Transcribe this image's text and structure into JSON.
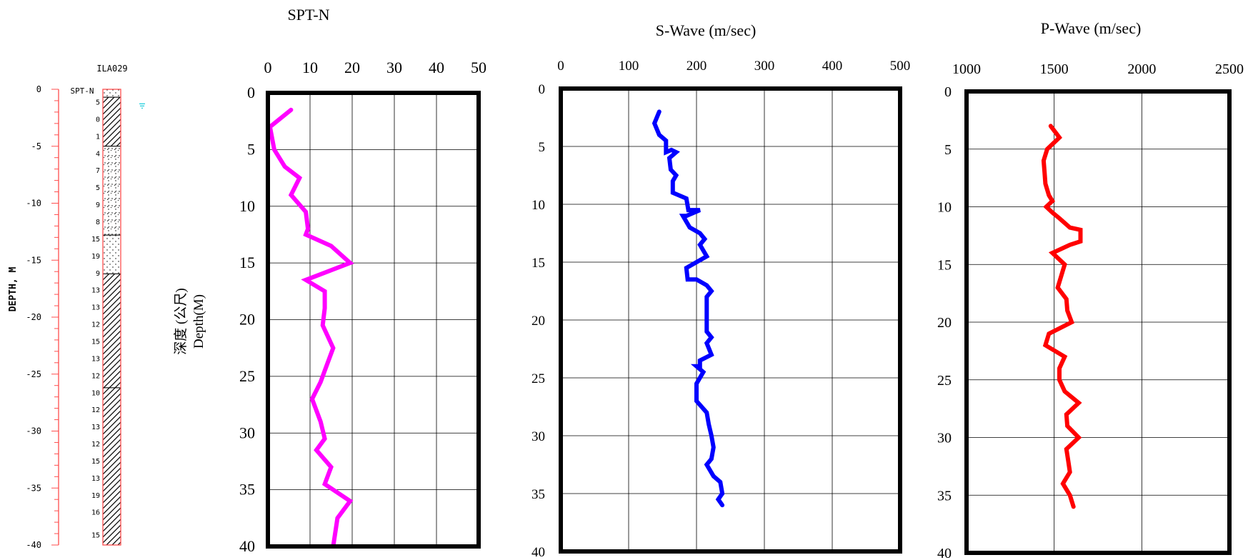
{
  "colors": {
    "spt": "#ff00ff",
    "swave": "#0000ff",
    "pwave": "#ff0000",
    "depth_axis": "#ff4d4d",
    "water_mark": "#00c8d8",
    "frame": "#000000"
  },
  "borehole": {
    "title": "ILA029",
    "column_label": "SPT-N",
    "depth_axis_label": "DEPTH,  M",
    "depth_ticks": [
      "0",
      "-5",
      "-10",
      "-15",
      "-20",
      "-25",
      "-30",
      "-35",
      "-40"
    ],
    "water_level_depth": 1.4,
    "spt_labels": [
      {
        "depth": 1.1,
        "text": "5"
      },
      {
        "depth": 2.6,
        "text": "0"
      },
      {
        "depth": 4.1,
        "text": "1"
      },
      {
        "depth": 5.6,
        "text": "4"
      },
      {
        "depth": 7.1,
        "text": "7"
      },
      {
        "depth": 8.6,
        "text": "5"
      },
      {
        "depth": 10.1,
        "text": "9"
      },
      {
        "depth": 11.6,
        "text": "8"
      },
      {
        "depth": 13.1,
        "text": "15"
      },
      {
        "depth": 14.6,
        "text": "19"
      },
      {
        "depth": 16.1,
        "text": "9"
      },
      {
        "depth": 17.6,
        "text": "13"
      },
      {
        "depth": 19.1,
        "text": "13"
      },
      {
        "depth": 20.6,
        "text": "12"
      },
      {
        "depth": 22.1,
        "text": "15"
      },
      {
        "depth": 23.6,
        "text": "13"
      },
      {
        "depth": 25.1,
        "text": "12"
      },
      {
        "depth": 26.6,
        "text": "10"
      },
      {
        "depth": 28.1,
        "text": "12"
      },
      {
        "depth": 29.6,
        "text": "13"
      },
      {
        "depth": 31.1,
        "text": "12"
      },
      {
        "depth": 32.6,
        "text": "15"
      },
      {
        "depth": 34.1,
        "text": "13"
      },
      {
        "depth": 35.6,
        "text": "19"
      },
      {
        "depth": 37.1,
        "text": "16"
      },
      {
        "depth": 39.1,
        "text": "15"
      }
    ],
    "layers": [
      {
        "from": 0,
        "to": 0.7,
        "type": "sand"
      },
      {
        "from": 0.7,
        "to": 5.0,
        "type": "clay"
      },
      {
        "from": 5.0,
        "to": 12.8,
        "type": "silty-sand"
      },
      {
        "from": 12.8,
        "to": 16.2,
        "type": "sand"
      },
      {
        "from": 16.2,
        "to": 26.2,
        "type": "clay"
      },
      {
        "from": 26.2,
        "to": 40.0,
        "type": "clay"
      }
    ]
  },
  "shared_ylabel_cn": "深度 (公尺)",
  "shared_ylabel_en": "Depth(M)",
  "chart_data": [
    {
      "type": "line",
      "title": "SPT-N",
      "xlim": [
        0,
        50
      ],
      "ylim": [
        40,
        0
      ],
      "x_ticks": [
        "0",
        "10",
        "20",
        "30",
        "40",
        "50"
      ],
      "y_ticks": [
        "0",
        "5",
        "10",
        "15",
        "20",
        "25",
        "30",
        "35",
        "40"
      ],
      "series": [
        {
          "points": [
            [
              5.5,
              1.5
            ],
            [
              0.5,
              3.0
            ],
            [
              1.5,
              5.0
            ],
            [
              4.0,
              6.5
            ],
            [
              7.5,
              7.5
            ],
            [
              5.5,
              9.0
            ],
            [
              9.0,
              10.5
            ],
            [
              9.5,
              12.0
            ],
            [
              9.0,
              12.5
            ],
            [
              15.0,
              13.5
            ],
            [
              19.5,
              15.0
            ],
            [
              9.0,
              16.5
            ],
            [
              13.5,
              17.5
            ],
            [
              13.5,
              19.0
            ],
            [
              13.0,
              20.5
            ],
            [
              15.5,
              22.5
            ],
            [
              13.5,
              24.5
            ],
            [
              12.5,
              25.5
            ],
            [
              10.5,
              27.0
            ],
            [
              12.5,
              29.0
            ],
            [
              13.5,
              30.5
            ],
            [
              11.5,
              31.5
            ],
            [
              15.0,
              33.0
            ],
            [
              13.5,
              34.5
            ],
            [
              19.5,
              36.0
            ],
            [
              16.5,
              37.5
            ],
            [
              15.5,
              40.0
            ]
          ]
        }
      ]
    },
    {
      "type": "line",
      "title": "S-Wave (m/sec)",
      "xlim": [
        0,
        500
      ],
      "ylim": [
        40,
        0
      ],
      "x_ticks": [
        "0",
        "100",
        "200",
        "300",
        "400",
        "500"
      ],
      "y_ticks": [
        "0",
        "5",
        "10",
        "15",
        "20",
        "25",
        "30",
        "35",
        "40"
      ],
      "series": [
        {
          "points": [
            [
              145,
              2.0
            ],
            [
              138,
              3.0
            ],
            [
              145,
              4.0
            ],
            [
              155,
              4.5
            ],
            [
              155,
              5.5
            ],
            [
              163,
              5.3
            ],
            [
              170,
              5.5
            ],
            [
              160,
              6.0
            ],
            [
              162,
              7.0
            ],
            [
              170,
              7.5
            ],
            [
              165,
              8.0
            ],
            [
              165,
              9.0
            ],
            [
              185,
              9.5
            ],
            [
              188,
              10.5
            ],
            [
              205,
              10.5
            ],
            [
              185,
              11.0
            ],
            [
              180,
              11.0
            ],
            [
              190,
              12.0
            ],
            [
              205,
              12.5
            ],
            [
              212,
              13.0
            ],
            [
              205,
              13.5
            ],
            [
              215,
              14.5
            ],
            [
              200,
              15.0
            ],
            [
              185,
              15.5
            ],
            [
              187,
              16.5
            ],
            [
              200,
              16.5
            ],
            [
              215,
              17.0
            ],
            [
              222,
              17.5
            ],
            [
              215,
              18.0
            ],
            [
              215,
              19.0
            ],
            [
              215,
              20.0
            ],
            [
              215,
              21.0
            ],
            [
              222,
              21.5
            ],
            [
              215,
              22.0
            ],
            [
              222,
              23.0
            ],
            [
              205,
              23.5
            ],
            [
              205,
              24.0
            ],
            [
              200,
              24.0
            ],
            [
              210,
              24.5
            ],
            [
              200,
              25.5
            ],
            [
              200,
              27.0
            ],
            [
              215,
              28.0
            ],
            [
              218,
              29.0
            ],
            [
              222,
              30.0
            ],
            [
              225,
              31.0
            ],
            [
              222,
              32.0
            ],
            [
              215,
              32.5
            ],
            [
              225,
              33.5
            ],
            [
              235,
              34.0
            ],
            [
              238,
              35.0
            ],
            [
              232,
              35.5
            ],
            [
              238,
              36.0
            ]
          ]
        }
      ]
    },
    {
      "type": "line",
      "title": "P-Wave (m/sec)",
      "xlim": [
        1000,
        2500
      ],
      "ylim": [
        40,
        0
      ],
      "x_ticks": [
        "1000",
        "1500",
        "2000",
        "2500"
      ],
      "y_ticks": [
        "0",
        "5",
        "10",
        "15",
        "20",
        "25",
        "30",
        "35",
        "40"
      ],
      "series": [
        {
          "points": [
            [
              1480,
              3.0
            ],
            [
              1530,
              4.0
            ],
            [
              1460,
              5.0
            ],
            [
              1440,
              6.0
            ],
            [
              1445,
              7.0
            ],
            [
              1450,
              8.0
            ],
            [
              1470,
              9.0
            ],
            [
              1490,
              9.5
            ],
            [
              1455,
              10.0
            ],
            [
              1490,
              10.5
            ],
            [
              1530,
              11.0
            ],
            [
              1590,
              11.8
            ],
            [
              1650,
              12.0
            ],
            [
              1650,
              13.0
            ],
            [
              1590,
              13.3
            ],
            [
              1490,
              14.0
            ],
            [
              1560,
              15.0
            ],
            [
              1520,
              17.0
            ],
            [
              1570,
              18.0
            ],
            [
              1575,
              19.0
            ],
            [
              1600,
              20.0
            ],
            [
              1470,
              21.0
            ],
            [
              1450,
              22.0
            ],
            [
              1560,
              23.0
            ],
            [
              1530,
              24.0
            ],
            [
              1530,
              25.0
            ],
            [
              1560,
              26.0
            ],
            [
              1640,
              27.0
            ],
            [
              1570,
              28.0
            ],
            [
              1575,
              29.0
            ],
            [
              1640,
              30.0
            ],
            [
              1570,
              31.0
            ],
            [
              1580,
              32.0
            ],
            [
              1590,
              33.0
            ],
            [
              1550,
              34.0
            ],
            [
              1590,
              35.0
            ],
            [
              1610,
              36.0
            ]
          ]
        }
      ]
    }
  ]
}
